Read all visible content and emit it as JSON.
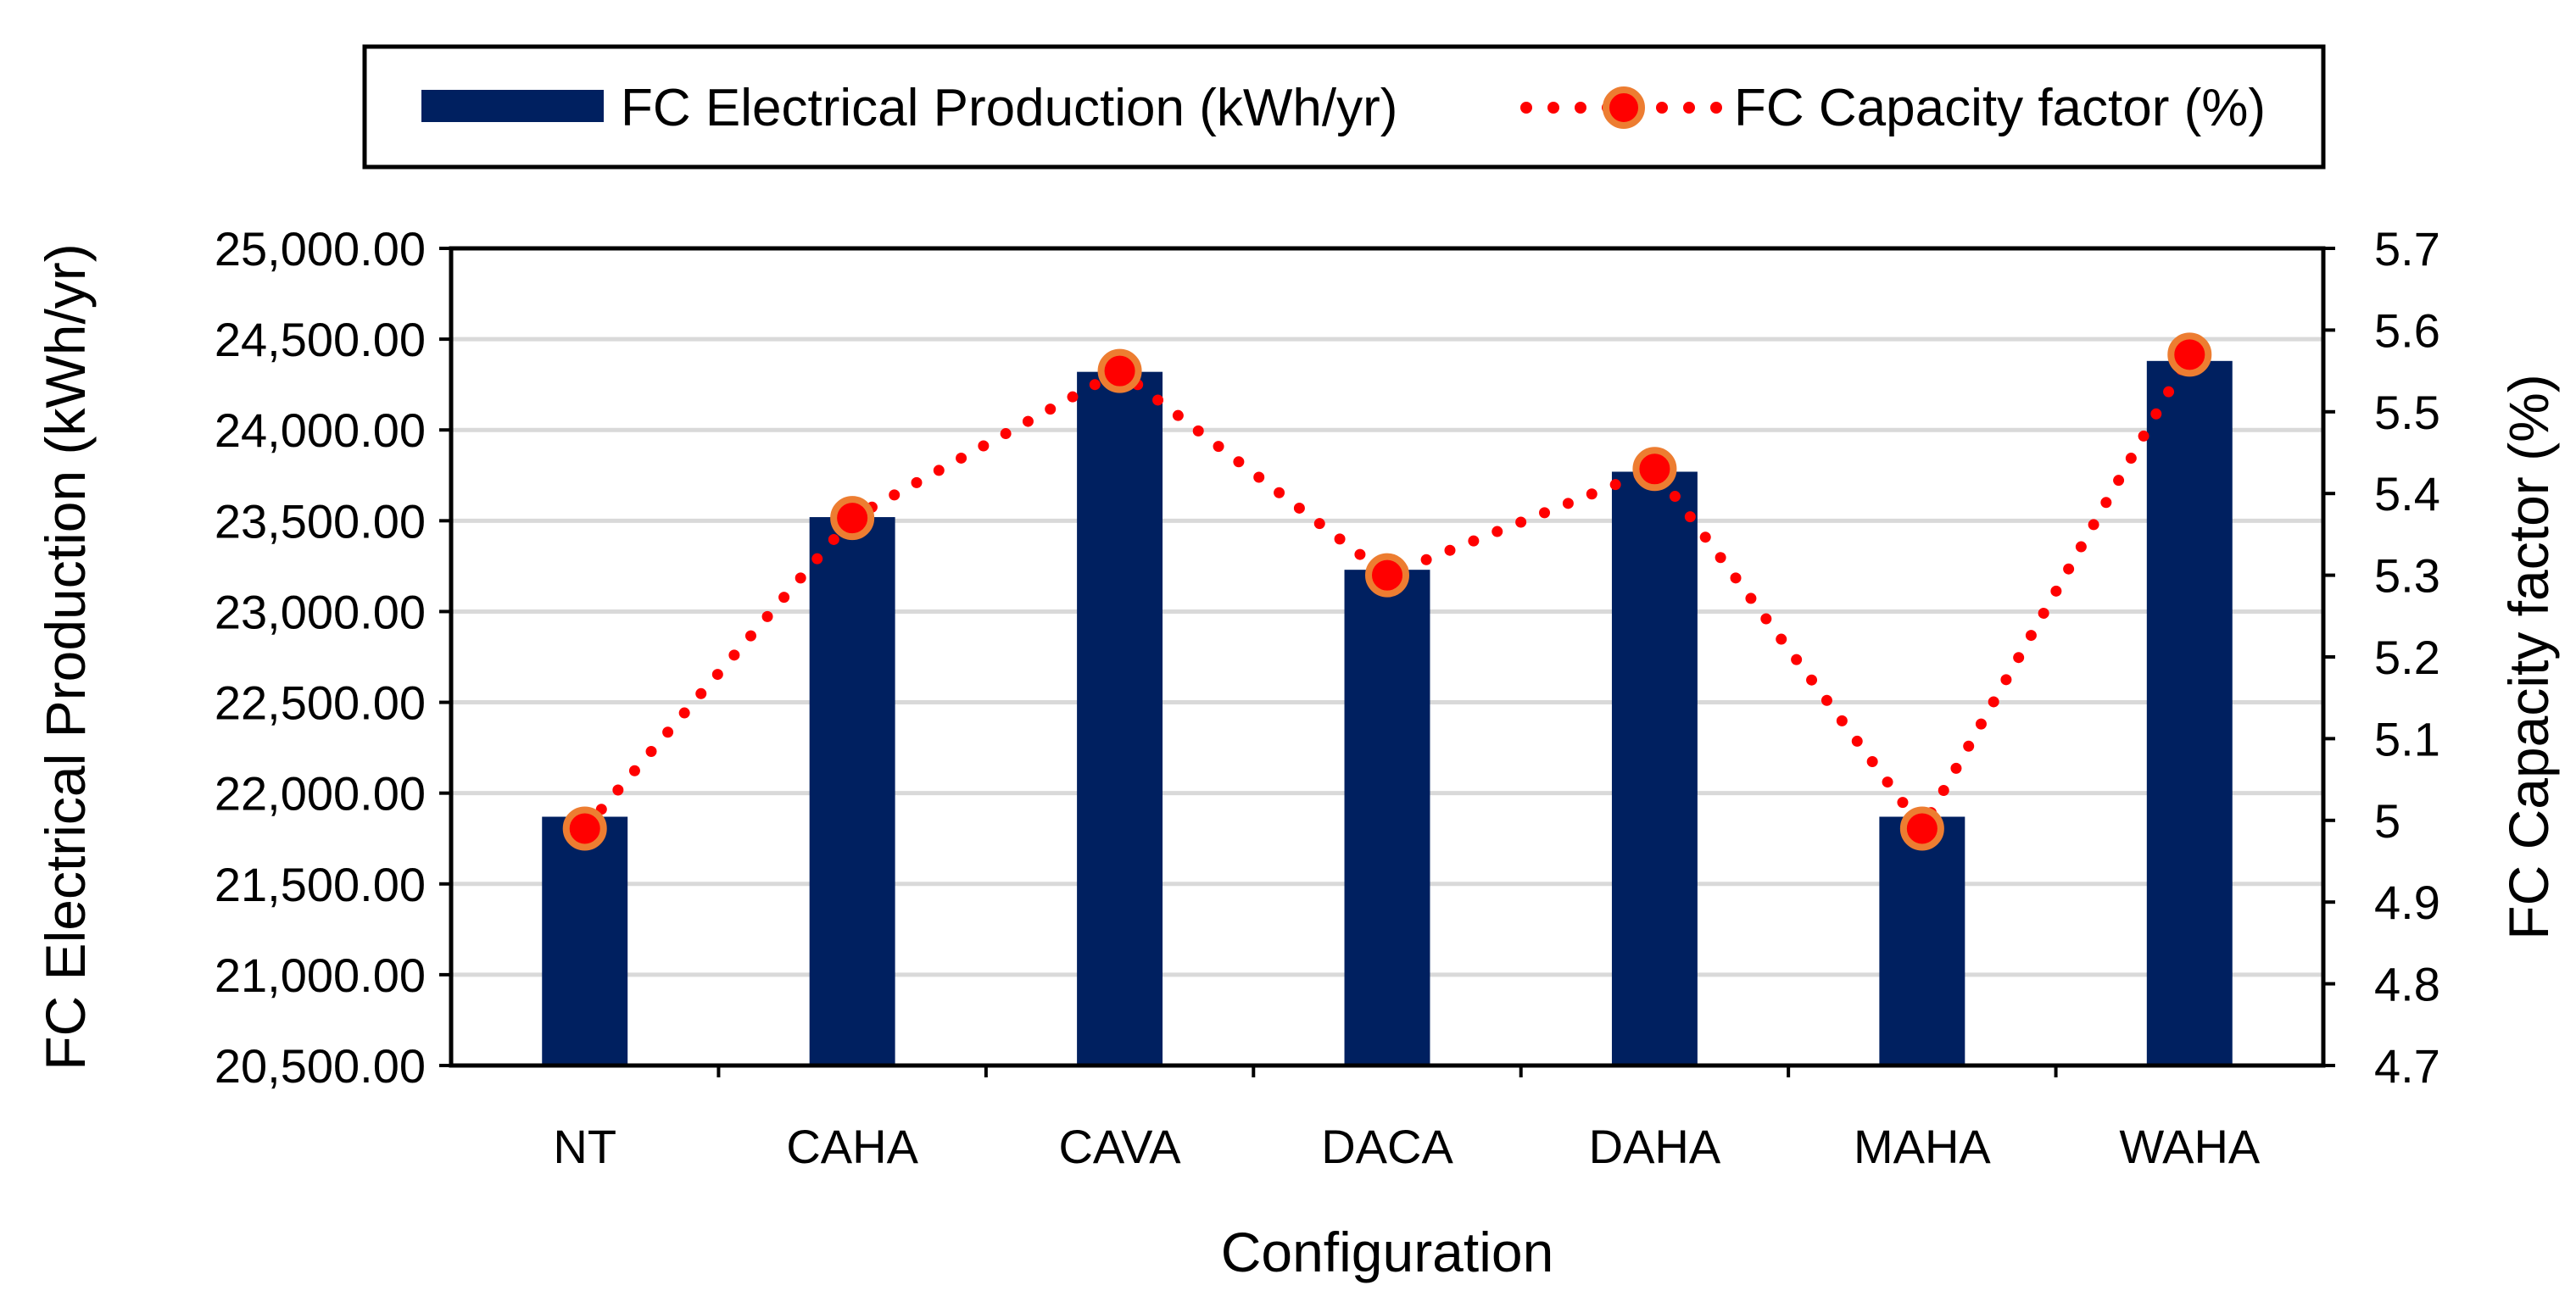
{
  "chart_data": {
    "type": "bar+line",
    "xlabel": "Configuration",
    "ylabel_left": "FC Electrical Production (kWh/yr)",
    "ylabel_right": "FC Capacity factor (%)",
    "categories": [
      "NT",
      "CAHA",
      "CAVA",
      "DACA",
      "DAHA",
      "MAHA",
      "WAHA"
    ],
    "series": [
      {
        "name": "FC Electrical Production (kWh/yr)",
        "type": "bar",
        "axis": "left",
        "color": "#002060",
        "values": [
          21870,
          23520,
          24320,
          23230,
          23770,
          21870,
          24380
        ]
      },
      {
        "name": "FC Capacity factor (%)",
        "type": "line-dotted-markers",
        "axis": "right",
        "line_color": "#FF0000",
        "marker_edge_color": "#ED7D31",
        "values": [
          4.99,
          5.37,
          5.55,
          5.3,
          5.43,
          4.99,
          5.57
        ]
      }
    ],
    "ylim_left": [
      20500,
      25000
    ],
    "yticks_left": [
      "20,500.00",
      "21,000.00",
      "21,500.00",
      "22,000.00",
      "22,500.00",
      "23,000.00",
      "23,500.00",
      "24,000.00",
      "24,500.00",
      "25,000.00"
    ],
    "ylim_right": [
      4.7,
      5.7
    ],
    "yticks_right": [
      "4.7",
      "4.8",
      "4.9",
      "5",
      "5.1",
      "5.2",
      "5.3",
      "5.4",
      "5.5",
      "5.6",
      "5.7"
    ],
    "grid": true,
    "legend_position": "top"
  }
}
